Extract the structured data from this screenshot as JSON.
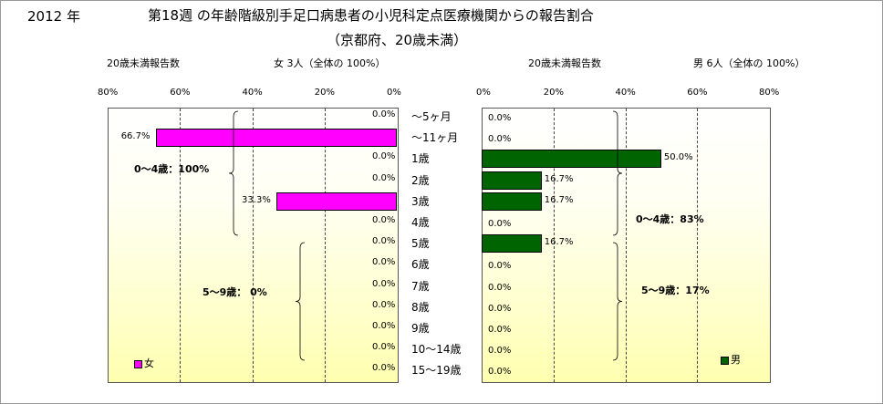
{
  "header": {
    "year": "2012 年",
    "title": "第18週 の年齢階級別手足口病患者の小児科定点医療機関からの報告割合",
    "subtitle": "（京都府、20歳未満）"
  },
  "chart_data": [
    {
      "type": "bar",
      "orientation": "horizontal",
      "direction": "right-to-left",
      "xlabel": "20歳未満報告数",
      "summary": "女  3人（全体の  100%）",
      "xlim": [
        0,
        80
      ],
      "ticks": [
        "80%",
        "60%",
        "40%",
        "20%",
        "0%"
      ],
      "tick_values": [
        80,
        60,
        40,
        20,
        0
      ],
      "grid": true,
      "legend": {
        "label": "女",
        "color": "#ff00ff",
        "position": "bottom-left"
      },
      "color": "#ff00ff",
      "categories": [
        "～5ヶ月",
        "～11ヶ月",
        "1歳",
        "2歳",
        "3歳",
        "4歳",
        "5歳",
        "6歳",
        "7歳",
        "8歳",
        "9歳",
        "10～14歳",
        "15～19歳"
      ],
      "values": [
        0,
        66.7,
        0,
        0,
        33.3,
        0,
        0,
        0,
        0,
        0,
        0,
        0,
        0
      ],
      "data_labels": [
        "0.0%",
        "66.7%",
        "0.0%",
        "0.0%",
        "33.3%",
        "0.0%",
        "0.0%",
        "0.0%",
        "0.0%",
        "0.0%",
        "0.0%",
        "0.0%",
        "0.0%"
      ],
      "annotations": [
        "0～4歳：100%",
        "5～9歳：  0%"
      ]
    },
    {
      "type": "bar",
      "orientation": "horizontal",
      "direction": "left-to-right",
      "xlabel": "20歳未満報告数",
      "summary": "男  6人（全体の  100%）",
      "xlim": [
        0,
        80
      ],
      "ticks": [
        "0%",
        "20%",
        "40%",
        "60%",
        "80%"
      ],
      "tick_values": [
        0,
        20,
        40,
        60,
        80
      ],
      "grid": true,
      "legend": {
        "label": "男",
        "color": "#006400",
        "position": "bottom-right"
      },
      "color": "#006400",
      "categories": [
        "～5ヶ月",
        "～11ヶ月",
        "1歳",
        "2歳",
        "3歳",
        "4歳",
        "5歳",
        "6歳",
        "7歳",
        "8歳",
        "9歳",
        "10～14歳",
        "15～19歳"
      ],
      "values": [
        0,
        0,
        50.0,
        16.7,
        16.7,
        0,
        16.7,
        0,
        0,
        0,
        0,
        0,
        0
      ],
      "data_labels": [
        "0.0%",
        "0.0%",
        "50.0%",
        "16.7%",
        "16.7%",
        "0.0%",
        "16.7%",
        "0.0%",
        "0.0%",
        "0.0%",
        "0.0%",
        "0.0%",
        "0.0%"
      ],
      "annotations": [
        "0～4歳：83%",
        "5～9歳：17%"
      ]
    }
  ]
}
